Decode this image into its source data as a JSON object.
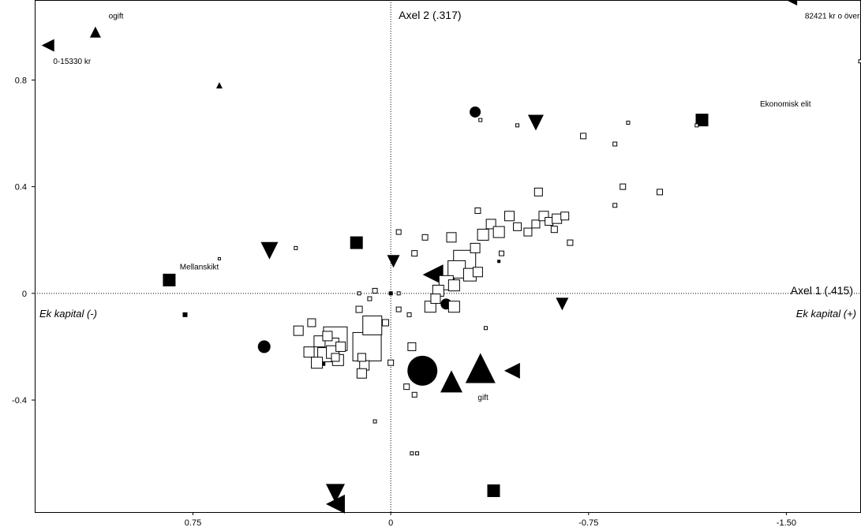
{
  "chart_data": {
    "type": "scatter",
    "title": "",
    "x_reversed": true,
    "xlim": [
      1.35,
      -1.78
    ],
    "ylim": [
      -0.82,
      1.1
    ],
    "grid": false,
    "x_ticks": [
      {
        "value": 0.75,
        "label": "0.75"
      },
      {
        "value": 0,
        "label": "0"
      },
      {
        "value": -0.75,
        "label": "-0.75"
      },
      {
        "value": -1.5,
        "label": "-1.50"
      }
    ],
    "y_ticks": [
      {
        "value": 0.8,
        "label": "0.8"
      },
      {
        "value": 0.4,
        "label": "0.4"
      },
      {
        "value": 0,
        "label": "0"
      },
      {
        "value": -0.4,
        "label": "-0.4"
      }
    ],
    "axis1_label": "Axel 1 (.415)",
    "axis2_label": "Axel 2 (.317)",
    "dim_left_label": "Ek kapital (-)",
    "dim_right_label": "Ek kapital (+)",
    "annotations": [
      {
        "text": "ogift",
        "x": 1.07,
        "y": 1.03
      },
      {
        "text": "0-15330 kr",
        "x": 1.28,
        "y": 0.86
      },
      {
        "text": "82421 kr o över",
        "x": -1.57,
        "y": 1.03
      },
      {
        "text": "Ekonomisk elit",
        "x": -1.4,
        "y": 0.7
      },
      {
        "text": "Mellanskikt",
        "x": 0.8,
        "y": 0.09
      },
      {
        "text": "gift",
        "x": -0.33,
        "y": -0.4
      }
    ],
    "points": [
      {
        "shape": "tri-left",
        "x": 1.3,
        "y": 0.93,
        "size": 16
      },
      {
        "shape": "tri-up",
        "x": 1.12,
        "y": 0.98,
        "size": 14
      },
      {
        "shape": "tri-up",
        "x": 0.65,
        "y": 0.78,
        "size": 8
      },
      {
        "shape": "tri-left",
        "x": -1.52,
        "y": 1.1,
        "size": 14
      },
      {
        "shape": "circle",
        "x": -0.32,
        "y": 0.68,
        "size": 14
      },
      {
        "shape": "tri-down",
        "x": -0.55,
        "y": 0.64,
        "size": 20
      },
      {
        "shape": "square",
        "x": -1.18,
        "y": 0.65,
        "size": 16
      },
      {
        "shape": "tri-down",
        "x": 0.46,
        "y": 0.16,
        "size": 22
      },
      {
        "shape": "square",
        "x": 0.13,
        "y": 0.19,
        "size": 16
      },
      {
        "shape": "square",
        "x": 0.84,
        "y": 0.05,
        "size": 16
      },
      {
        "shape": "square",
        "x": 0.78,
        "y": -0.08,
        "size": 6
      },
      {
        "shape": "tri-down",
        "x": -0.01,
        "y": 0.12,
        "size": 16
      },
      {
        "shape": "tri-left",
        "x": -0.16,
        "y": 0.07,
        "size": 26
      },
      {
        "shape": "circle",
        "x": 0.48,
        "y": -0.2,
        "size": 16
      },
      {
        "shape": "circle",
        "x": -0.21,
        "y": -0.04,
        "size": 14
      },
      {
        "shape": "tri-down",
        "x": -0.65,
        "y": -0.04,
        "size": 16
      },
      {
        "shape": "circle",
        "x": -0.12,
        "y": -0.29,
        "size": 38
      },
      {
        "shape": "tri-up",
        "x": -0.23,
        "y": -0.33,
        "size": 28
      },
      {
        "shape": "tri-up",
        "x": -0.34,
        "y": -0.28,
        "size": 38
      },
      {
        "shape": "tri-left",
        "x": -0.46,
        "y": -0.29,
        "size": 20
      },
      {
        "shape": "square",
        "x": -0.39,
        "y": -0.74,
        "size": 16
      },
      {
        "shape": "tri-down",
        "x": 0.21,
        "y": -0.75,
        "size": 24
      },
      {
        "shape": "tri-left",
        "x": 0.21,
        "y": -0.79,
        "size": 24
      },
      {
        "shape": "square",
        "x": 0.26,
        "y": -0.26,
        "size": 8
      },
      {
        "shape": "square",
        "x": 0.0,
        "y": 0.0,
        "size": 5
      },
      {
        "shape": "square",
        "x": -0.41,
        "y": 0.12,
        "size": 4
      },
      {
        "shape": "tri-down",
        "x": -0.24,
        "y": 0.06,
        "size": 7
      },
      {
        "shape": "square",
        "x": 0.21,
        "y": -0.17,
        "size": 30,
        "hollow": true
      },
      {
        "shape": "square",
        "x": 0.23,
        "y": -0.2,
        "size": 22,
        "hollow": true
      },
      {
        "shape": "square",
        "x": 0.25,
        "y": -0.23,
        "size": 18,
        "hollow": true
      },
      {
        "shape": "square",
        "x": 0.27,
        "y": -0.18,
        "size": 14,
        "hollow": true
      },
      {
        "shape": "square",
        "x": 0.31,
        "y": -0.22,
        "size": 13,
        "hollow": true
      },
      {
        "shape": "square",
        "x": 0.35,
        "y": -0.14,
        "size": 12,
        "hollow": true
      },
      {
        "shape": "square",
        "x": 0.3,
        "y": -0.11,
        "size": 10,
        "hollow": true
      },
      {
        "shape": "square",
        "x": 0.22,
        "y": -0.22,
        "size": 16,
        "hollow": true
      },
      {
        "shape": "square",
        "x": 0.2,
        "y": -0.25,
        "size": 14,
        "hollow": true
      },
      {
        "shape": "square",
        "x": 0.28,
        "y": -0.26,
        "size": 14,
        "hollow": true
      },
      {
        "shape": "square",
        "x": 0.24,
        "y": -0.16,
        "size": 12,
        "hollow": true
      },
      {
        "shape": "square",
        "x": 0.19,
        "y": -0.2,
        "size": 12,
        "hollow": true
      },
      {
        "shape": "square",
        "x": 0.21,
        "y": -0.24,
        "size": 10,
        "hollow": true
      },
      {
        "shape": "square",
        "x": 0.09,
        "y": -0.2,
        "size": 36,
        "hollow": true
      },
      {
        "shape": "square",
        "x": 0.07,
        "y": -0.12,
        "size": 24,
        "hollow": true
      },
      {
        "shape": "square",
        "x": 0.1,
        "y": -0.27,
        "size": 12,
        "hollow": true
      },
      {
        "shape": "square",
        "x": 0.11,
        "y": -0.24,
        "size": 10,
        "hollow": true
      },
      {
        "shape": "square",
        "x": 0.11,
        "y": -0.3,
        "size": 12,
        "hollow": true
      },
      {
        "shape": "square",
        "x": 0.12,
        "y": -0.06,
        "size": 8,
        "hollow": true
      },
      {
        "shape": "square",
        "x": 0.02,
        "y": -0.11,
        "size": 8,
        "hollow": true
      },
      {
        "shape": "square",
        "x": 0.0,
        "y": -0.26,
        "size": 7,
        "hollow": true
      },
      {
        "shape": "square",
        "x": 0.06,
        "y": 0.01,
        "size": 6,
        "hollow": true
      },
      {
        "shape": "square",
        "x": 0.08,
        "y": -0.02,
        "size": 5,
        "hollow": true
      },
      {
        "shape": "square",
        "x": 0.12,
        "y": 0.0,
        "size": 4,
        "hollow": true
      },
      {
        "shape": "square",
        "x": -0.03,
        "y": 0.0,
        "size": 4,
        "hollow": true
      },
      {
        "shape": "square",
        "x": -0.07,
        "y": -0.08,
        "size": 5,
        "hollow": true
      },
      {
        "shape": "square",
        "x": -0.03,
        "y": -0.06,
        "size": 6,
        "hollow": true
      },
      {
        "shape": "square",
        "x": -0.08,
        "y": -0.2,
        "size": 10,
        "hollow": true
      },
      {
        "shape": "square",
        "x": -0.06,
        "y": -0.35,
        "size": 7,
        "hollow": true
      },
      {
        "shape": "square",
        "x": -0.09,
        "y": -0.38,
        "size": 6,
        "hollow": true
      },
      {
        "shape": "square",
        "x": -0.1,
        "y": -0.6,
        "size": 4,
        "hollow": true
      },
      {
        "shape": "square",
        "x": 0.06,
        "y": -0.48,
        "size": 4,
        "hollow": true
      },
      {
        "shape": "square",
        "x": -0.03,
        "y": 0.23,
        "size": 6,
        "hollow": true
      },
      {
        "shape": "square",
        "x": -0.13,
        "y": 0.21,
        "size": 7,
        "hollow": true
      },
      {
        "shape": "square",
        "x": -0.09,
        "y": 0.15,
        "size": 7,
        "hollow": true
      },
      {
        "shape": "square",
        "x": -0.23,
        "y": 0.21,
        "size": 12,
        "hollow": true
      },
      {
        "shape": "square",
        "x": -0.28,
        "y": 0.12,
        "size": 28,
        "hollow": true
      },
      {
        "shape": "square",
        "x": -0.25,
        "y": 0.09,
        "size": 22,
        "hollow": true
      },
      {
        "shape": "square",
        "x": -0.21,
        "y": 0.04,
        "size": 18,
        "hollow": true
      },
      {
        "shape": "square",
        "x": -0.18,
        "y": 0.01,
        "size": 14,
        "hollow": true
      },
      {
        "shape": "square",
        "x": -0.24,
        "y": 0.03,
        "size": 14,
        "hollow": true
      },
      {
        "shape": "square",
        "x": -0.3,
        "y": 0.07,
        "size": 16,
        "hollow": true
      },
      {
        "shape": "square",
        "x": -0.33,
        "y": 0.08,
        "size": 12,
        "hollow": true
      },
      {
        "shape": "square",
        "x": -0.15,
        "y": -0.05,
        "size": 14,
        "hollow": true
      },
      {
        "shape": "square",
        "x": -0.24,
        "y": -0.05,
        "size": 14,
        "hollow": true
      },
      {
        "shape": "square",
        "x": -0.17,
        "y": -0.02,
        "size": 12,
        "hollow": true
      },
      {
        "shape": "square",
        "x": -0.32,
        "y": 0.17,
        "size": 12,
        "hollow": true
      },
      {
        "shape": "square",
        "x": -0.35,
        "y": 0.22,
        "size": 14,
        "hollow": true
      },
      {
        "shape": "square",
        "x": -0.38,
        "y": 0.26,
        "size": 12,
        "hollow": true
      },
      {
        "shape": "square",
        "x": -0.41,
        "y": 0.23,
        "size": 14,
        "hollow": true
      },
      {
        "shape": "square",
        "x": -0.45,
        "y": 0.29,
        "size": 12,
        "hollow": true
      },
      {
        "shape": "square",
        "x": -0.48,
        "y": 0.25,
        "size": 10,
        "hollow": true
      },
      {
        "shape": "square",
        "x": -0.52,
        "y": 0.23,
        "size": 10,
        "hollow": true
      },
      {
        "shape": "square",
        "x": -0.55,
        "y": 0.26,
        "size": 10,
        "hollow": true
      },
      {
        "shape": "square",
        "x": -0.58,
        "y": 0.29,
        "size": 12,
        "hollow": true
      },
      {
        "shape": "square",
        "x": -0.6,
        "y": 0.27,
        "size": 10,
        "hollow": true
      },
      {
        "shape": "square",
        "x": -0.63,
        "y": 0.28,
        "size": 12,
        "hollow": true
      },
      {
        "shape": "square",
        "x": -0.66,
        "y": 0.29,
        "size": 10,
        "hollow": true
      },
      {
        "shape": "square",
        "x": -0.56,
        "y": 0.38,
        "size": 10,
        "hollow": true
      },
      {
        "shape": "square",
        "x": -0.62,
        "y": 0.24,
        "size": 8,
        "hollow": true
      },
      {
        "shape": "square",
        "x": -0.68,
        "y": 0.19,
        "size": 7,
        "hollow": true
      },
      {
        "shape": "square",
        "x": -0.33,
        "y": 0.31,
        "size": 7,
        "hollow": true
      },
      {
        "shape": "square",
        "x": -0.42,
        "y": 0.15,
        "size": 6,
        "hollow": true
      },
      {
        "shape": "square",
        "x": -0.73,
        "y": 0.59,
        "size": 7,
        "hollow": true
      },
      {
        "shape": "square",
        "x": -0.85,
        "y": 0.56,
        "size": 5,
        "hollow": true
      },
      {
        "shape": "square",
        "x": -0.9,
        "y": 0.64,
        "size": 4,
        "hollow": true
      },
      {
        "shape": "square",
        "x": -0.88,
        "y": 0.4,
        "size": 7,
        "hollow": true
      },
      {
        "shape": "square",
        "x": -0.85,
        "y": 0.33,
        "size": 5,
        "hollow": true
      },
      {
        "shape": "square",
        "x": -1.02,
        "y": 0.38,
        "size": 7,
        "hollow": true
      },
      {
        "shape": "square",
        "x": -0.34,
        "y": 0.65,
        "size": 4,
        "hollow": true
      },
      {
        "shape": "square",
        "x": -0.48,
        "y": 0.63,
        "size": 4,
        "hollow": true
      },
      {
        "shape": "square",
        "x": -1.16,
        "y": 0.63,
        "size": 4,
        "hollow": true
      },
      {
        "shape": "square",
        "x": -1.78,
        "y": 0.87,
        "size": 4,
        "hollow": true
      },
      {
        "shape": "square",
        "x": 0.36,
        "y": 0.17,
        "size": 4,
        "hollow": true
      },
      {
        "shape": "square",
        "x": 0.65,
        "y": 0.13,
        "size": 3,
        "hollow": true
      },
      {
        "shape": "square",
        "x": -0.36,
        "y": -0.13,
        "size": 4,
        "hollow": true
      },
      {
        "shape": "square",
        "x": -0.08,
        "y": -0.6,
        "size": 4,
        "hollow": true
      }
    ]
  }
}
